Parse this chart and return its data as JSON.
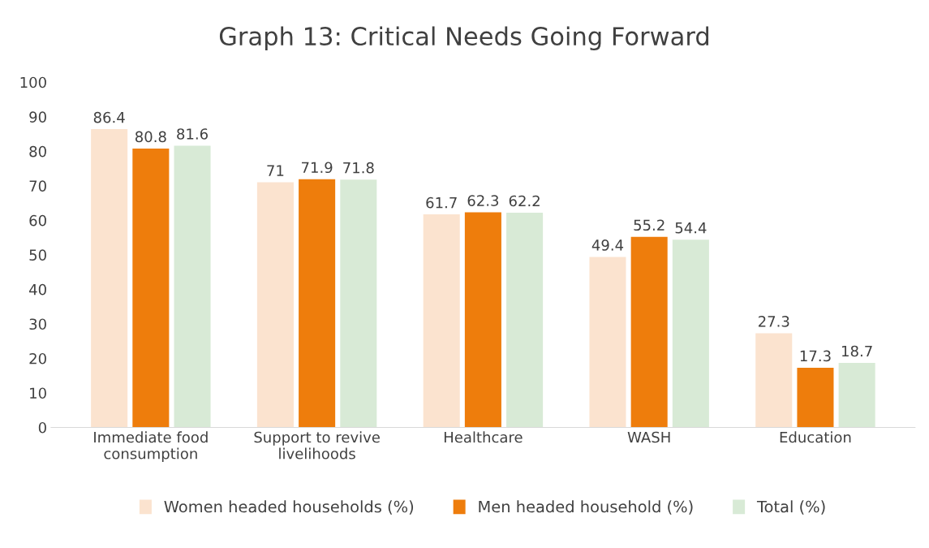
{
  "chart_data": {
    "type": "bar",
    "title": "Graph 13: Critical Needs Going Forward",
    "categories": [
      "Immediate food\nconsumption",
      "Support to revive\nlivelihoods",
      "Healthcare",
      "WASH",
      "Education"
    ],
    "series": [
      {
        "name": "Women headed households (%)",
        "color": "#fbe3cf",
        "values": [
          86.4,
          71,
          61.7,
          49.4,
          27.3
        ]
      },
      {
        "name": "Men headed household (%)",
        "color": "#ee7d0c",
        "values": [
          80.8,
          71.9,
          62.3,
          55.2,
          17.3
        ]
      },
      {
        "name": "Total (%)",
        "color": "#d8ead6",
        "values": [
          81.6,
          71.8,
          62.2,
          54.4,
          18.7
        ]
      }
    ],
    "ylim": [
      0,
      100
    ],
    "yticks": [
      0,
      10,
      20,
      30,
      40,
      50,
      60,
      70,
      80,
      90,
      100
    ],
    "data_labels": true,
    "grid": false,
    "legend": "bottom"
  }
}
